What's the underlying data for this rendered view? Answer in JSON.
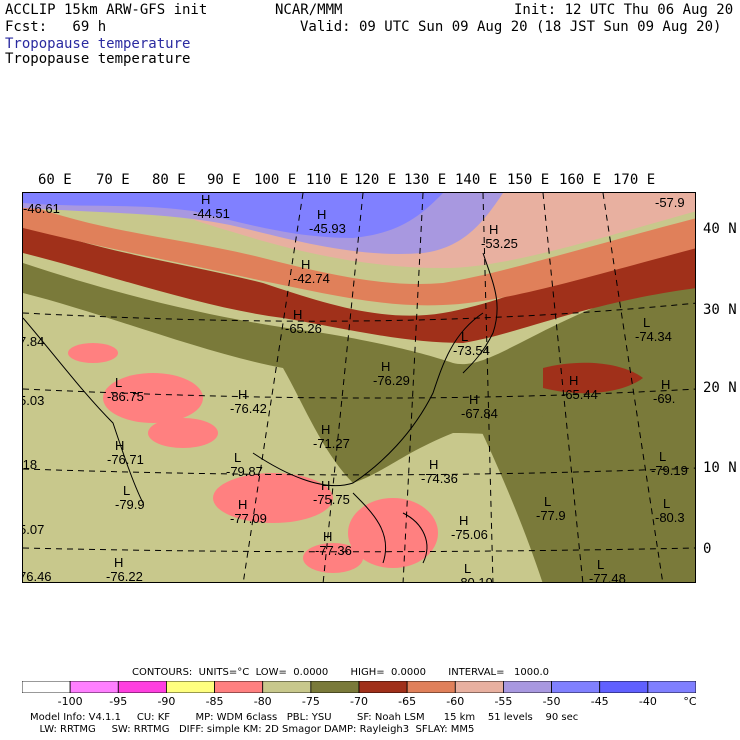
{
  "header": {
    "left1": "ACCLIP 15km ARW-GFS init",
    "center1": "NCAR/MMM",
    "right1": "Init: 12 UTC Thu 06 Aug 20",
    "left2": "Fcst:   69 h",
    "right2": "Valid: 09 UTC Sun 09 Aug 20 (18 JST Sun 09 Aug 20)",
    "field_label_blue": "Tropopause temperature",
    "field_label_black": "Tropopause temperature"
  },
  "longitudes": [
    "60 E",
    "70 E",
    "80 E",
    "90 E",
    "100 E",
    "110 E",
    "120 E",
    "130 E",
    "140 E",
    "150 E",
    "160 E",
    "170 E"
  ],
  "latitudes": [
    "40 N",
    "30 N",
    "20 N",
    "10 N",
    "0"
  ],
  "map_labels": [
    {
      "t": "-46.61",
      "h": ""
    },
    {
      "t": "-44.51",
      "h": "H"
    },
    {
      "t": "-45.93",
      "h": "H"
    },
    {
      "t": "-53.25",
      "h": "H"
    },
    {
      "t": "-57.9",
      "h": ""
    },
    {
      "t": "-42.74",
      "h": "H"
    },
    {
      "t": "-65.26",
      "h": "H"
    },
    {
      "t": "-74.34",
      "h": "L"
    },
    {
      "t": "-73.54",
      "h": "L"
    },
    {
      "t": "7.84",
      "h": ""
    },
    {
      "t": "-76.29",
      "h": "H"
    },
    {
      "t": "-86.75",
      "h": "L"
    },
    {
      "t": "-76.42",
      "h": "H"
    },
    {
      "t": "-65.44",
      "h": "H"
    },
    {
      "t": "-69.",
      "h": "H"
    },
    {
      "t": "5.03",
      "h": ""
    },
    {
      "t": "-67.84",
      "h": "H"
    },
    {
      "t": "-71.27",
      "h": "H"
    },
    {
      "t": "-76.71",
      "h": "H"
    },
    {
      "t": "-79.87",
      "h": "L"
    },
    {
      "t": ".18",
      "h": ""
    },
    {
      "t": "-74.36",
      "h": "H"
    },
    {
      "t": "-79.19",
      "h": "L"
    },
    {
      "t": "-79.9",
      "h": "L"
    },
    {
      "t": "-75.75",
      "h": "H"
    },
    {
      "t": "-77.09",
      "h": "H"
    },
    {
      "t": "-77.9",
      "h": "L"
    },
    {
      "t": "-80.3",
      "h": "L"
    },
    {
      "t": "5.07",
      "h": ""
    },
    {
      "t": "-75.06",
      "h": "H"
    },
    {
      "t": "-77.36",
      "h": "H"
    },
    {
      "t": "76.46",
      "h": ""
    },
    {
      "t": "-76.22",
      "h": "H"
    },
    {
      "t": "-80.19",
      "h": "L"
    },
    {
      "t": "-77.48",
      "h": "L"
    }
  ],
  "contours": "CONTOURS:  UNITS=°C  LOW=  0.0000       HIGH=  0.0000       INTERVAL=   1000.0",
  "colorbar": {
    "colors": [
      "#ffffff",
      "#ff7fff",
      "#ff3fdf",
      "#ffff7f",
      "#ff8080",
      "#c8c88c",
      "#7a7a3a",
      "#a0301a",
      "#e0805a",
      "#e8b0a0",
      "#a898e0",
      "#8080ff",
      "#6060ff",
      "#7f7fff"
    ],
    "labels": [
      "-100",
      "-95",
      "-90",
      "-85",
      "-80",
      "-75",
      "-70",
      "-65",
      "-60",
      "-55",
      "-50",
      "-45",
      "-40",
      "°C"
    ]
  },
  "model_info": {
    "line1": "Model Info: V4.1.1     CU: KF        MP: WDM 6class   PBL: YSU        SF: Noah LSM      15 km    51 levels    90 sec",
    "line2": "   LW: RRTMG     SW: RRTMG   DIFF: simple KM: 2D Smagor DAMP: Rayleigh3  SFLAY: MM5"
  }
}
